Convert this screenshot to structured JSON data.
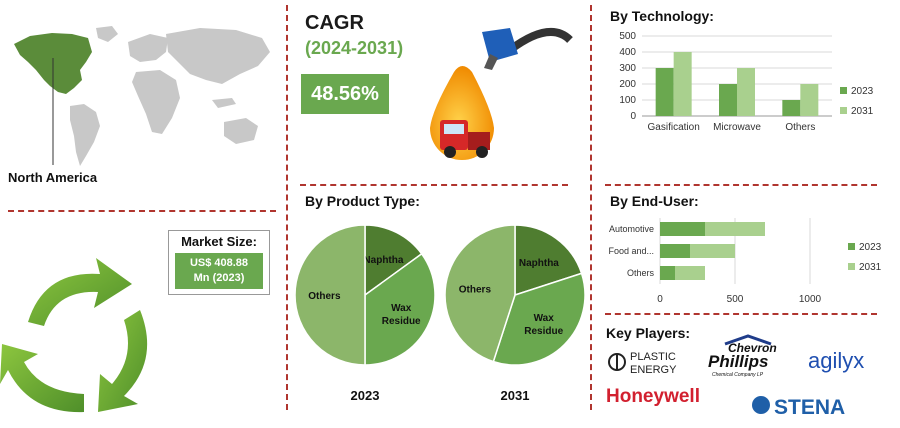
{
  "region": {
    "label": "North America"
  },
  "cagr": {
    "title": "CAGR",
    "period": "(2024-2031)",
    "value": "48.56%"
  },
  "market_size": {
    "title": "Market Size:",
    "value_line1": "US$ 408.88",
    "value_line2": "Mn (2023)"
  },
  "product_type": {
    "title": "By Product Type:"
  },
  "technology": {
    "title": "By Technology:"
  },
  "end_user": {
    "title": "By  End-User:"
  },
  "key_players": {
    "title": "Key Players:",
    "logos": {
      "plastic_energy_1": "PLASTIC",
      "plastic_energy_2": "ENERGY",
      "chevron_1": "Chevron",
      "chevron_2": "Phillips",
      "chevron_3": "Chemical Company LP",
      "agilyx": "agilyx",
      "honeywell": "Honeywell",
      "stena": "STENA"
    }
  },
  "colors": {
    "dark_green": "#5b8c3a",
    "mid_green": "#6aa84f",
    "light_green": "#a9d08e",
    "divider": "#b0352f"
  },
  "chart_data": [
    {
      "type": "bar",
      "title": "By Technology:",
      "categories": [
        "Gasification",
        "Microwave",
        "Others"
      ],
      "series": [
        {
          "name": "2023",
          "values": [
            300,
            200,
            100
          ]
        },
        {
          "name": "2031",
          "values": [
            400,
            300,
            200
          ]
        }
      ],
      "ylim": [
        0,
        500
      ],
      "yticks": [
        0,
        100,
        200,
        300,
        400,
        500
      ],
      "grid": true,
      "legend": "right"
    },
    {
      "type": "bar",
      "orientation": "horizontal",
      "stacked": true,
      "title": "By  End-User:",
      "categories": [
        "Automotive",
        "Food and...",
        "Others"
      ],
      "series": [
        {
          "name": "2023",
          "values": [
            300,
            200,
            100
          ]
        },
        {
          "name": "2031",
          "values": [
            400,
            300,
            200
          ]
        }
      ],
      "xlim": [
        0,
        1000
      ],
      "xticks": [
        0,
        500,
        1000
      ],
      "grid": true,
      "legend": "right"
    },
    {
      "type": "pie",
      "year": "2023",
      "slices": [
        {
          "label": "Naphtha",
          "value": 15
        },
        {
          "label": "Wax Residue",
          "value": 35
        },
        {
          "label": "Others",
          "value": 50
        }
      ]
    },
    {
      "type": "pie",
      "year": "2031",
      "slices": [
        {
          "label": "Naphtha",
          "value": 20
        },
        {
          "label": "Wax Residue",
          "value": 35
        },
        {
          "label": "Others",
          "value": 45
        }
      ]
    }
  ]
}
